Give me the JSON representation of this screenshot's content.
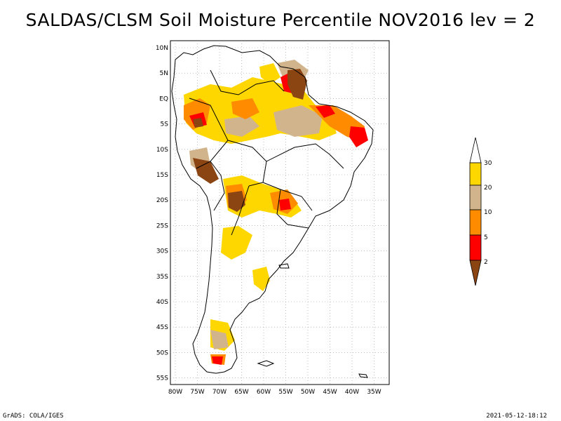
{
  "title": "SALDAS/CLSM Soil Moisture Percentile NOV2016 lev = 2",
  "lat_labels": [
    "10N",
    "5N",
    "EQ",
    "5S",
    "10S",
    "15S",
    "20S",
    "25S",
    "30S",
    "35S",
    "40S",
    "45S",
    "50S",
    "55S"
  ],
  "lon_labels": [
    "80W",
    "75W",
    "70W",
    "65W",
    "60W",
    "55W",
    "50W",
    "45W",
    "40W",
    "35W"
  ],
  "legend": {
    "labels": [
      "30",
      "20",
      "10",
      "5",
      "2"
    ],
    "colors": {
      "above30": "#ffffff",
      "p20_30": "#ffd700",
      "p10_20": "#d2b48c",
      "p5_10": "#ff8c00",
      "p2_5": "#ff0000",
      "below2": "#8b4513"
    }
  },
  "colors": {
    "land_outline": "#000000",
    "grid": "#999999"
  },
  "footer": {
    "left": "GrADS: COLA/IGES",
    "right": "2021-05-12-18:12"
  }
}
